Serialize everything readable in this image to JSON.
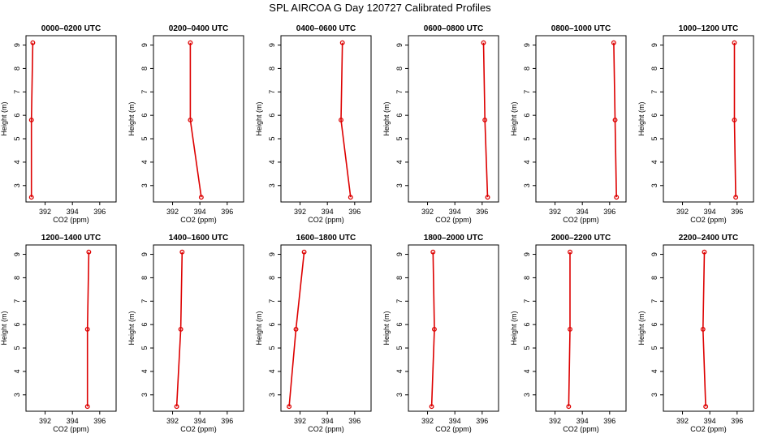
{
  "title": "SPL AIRCOA G  Day 120727  Calibrated Profiles",
  "chart_data": {
    "type": "line",
    "title": "SPL AIRCOA G  Day 120727  Calibrated Profiles",
    "xlabel": "CO2 (ppm)",
    "ylabel": "Height (m)",
    "xlim": [
      390.6,
      397.2
    ],
    "ylim": [
      2.3,
      9.4
    ],
    "xticks": [
      392,
      394,
      396
    ],
    "yticks": [
      3,
      4,
      5,
      6,
      7,
      8,
      9
    ],
    "line_color": "#dd0000",
    "panels": [
      {
        "title": "0000–0200 UTC",
        "x": [
          391.1,
          391.0,
          391.0
        ],
        "y": [
          9.1,
          5.8,
          2.5
        ]
      },
      {
        "title": "0200–0400 UTC",
        "x": [
          393.3,
          393.3,
          394.1
        ],
        "y": [
          9.1,
          5.8,
          2.5
        ]
      },
      {
        "title": "0400–0600 UTC",
        "x": [
          395.1,
          395.0,
          395.7
        ],
        "y": [
          9.1,
          5.8,
          2.5
        ]
      },
      {
        "title": "0600–0800 UTC",
        "x": [
          396.1,
          396.2,
          396.4
        ],
        "y": [
          9.1,
          5.8,
          2.5
        ]
      },
      {
        "title": "0800–1000 UTC",
        "x": [
          396.3,
          396.4,
          396.5
        ],
        "y": [
          9.1,
          5.8,
          2.5
        ]
      },
      {
        "title": "1000–1200 UTC",
        "x": [
          395.8,
          395.8,
          395.9
        ],
        "y": [
          9.1,
          5.8,
          2.5
        ]
      },
      {
        "title": "1200–1400 UTC",
        "x": [
          395.2,
          395.1,
          395.1
        ],
        "y": [
          9.1,
          5.8,
          2.5
        ]
      },
      {
        "title": "1400–1600 UTC",
        "x": [
          392.7,
          392.6,
          392.3
        ],
        "y": [
          9.1,
          5.8,
          2.5
        ]
      },
      {
        "title": "1600–1800 UTC",
        "x": [
          392.3,
          391.7,
          391.2
        ],
        "y": [
          9.1,
          5.8,
          2.5
        ]
      },
      {
        "title": "1800–2000 UTC",
        "x": [
          392.4,
          392.5,
          392.3
        ],
        "y": [
          9.1,
          5.8,
          2.5
        ]
      },
      {
        "title": "2000–2200 UTC",
        "x": [
          393.1,
          393.1,
          393.0
        ],
        "y": [
          9.1,
          5.8,
          2.5
        ]
      },
      {
        "title": "2200–2400 UTC",
        "x": [
          393.6,
          393.5,
          393.7
        ],
        "y": [
          9.1,
          5.8,
          2.5
        ]
      }
    ]
  }
}
